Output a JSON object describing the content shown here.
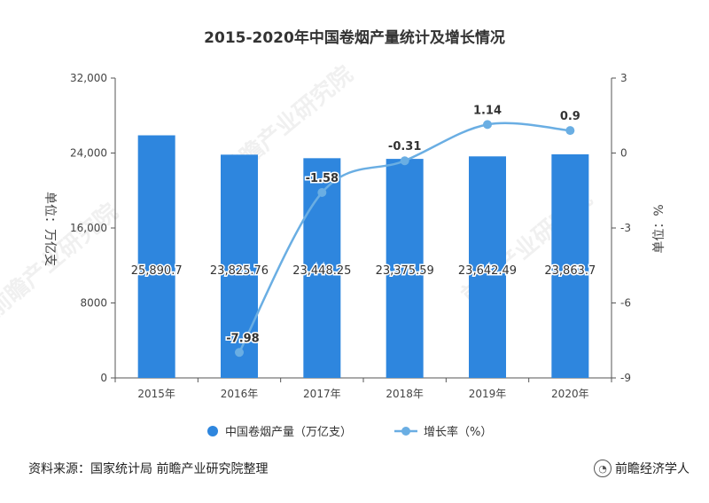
{
  "chart_data": {
    "type": "bar+line",
    "title": "2015-2020年中国卷烟产量统计及增长情况",
    "categories": [
      "2015年",
      "2016年",
      "2017年",
      "2018年",
      "2019年",
      "2020年"
    ],
    "series": [
      {
        "name": "中国卷烟产量（万亿支）",
        "type": "bar",
        "axis": "left",
        "values": [
          25890.7,
          23825.76,
          23448.25,
          23375.59,
          23642.49,
          23863.7
        ],
        "labels": [
          "25,890.7",
          "23,825.76",
          "23,448.25",
          "23,375.59",
          "23,642.49",
          "23,863.7"
        ]
      },
      {
        "name": "增长率（%）",
        "type": "line",
        "axis": "right",
        "values": [
          null,
          -7.98,
          -1.58,
          -0.31,
          1.14,
          0.9
        ],
        "labels": [
          "",
          "-7.98",
          "-1.58",
          "-0.31",
          "1.14",
          "0.9"
        ]
      }
    ],
    "y_left": {
      "label": "单位：万亿支",
      "range": [
        0,
        32000
      ],
      "ticks": [
        0,
        8000,
        16000,
        24000,
        32000
      ],
      "tick_labels": [
        "0",
        "8000",
        "16,000",
        "24,000",
        "32,000"
      ]
    },
    "y_right": {
      "label": "单位：%",
      "range": [
        -9,
        3
      ],
      "ticks": [
        -9,
        -6,
        -3,
        0,
        3
      ],
      "tick_labels": [
        "-9",
        "-6",
        "-3",
        "0",
        "3"
      ]
    },
    "legend": [
      "中国卷烟产量（万亿支）",
      "增长率（%）"
    ],
    "colors": {
      "bar": "#2e86de",
      "line": "#6aaee3",
      "text": "#333333",
      "axis": "#555555"
    }
  },
  "watermark": "前瞻产业研究院",
  "footer": {
    "source": "资料来源：国家统计局 前瞻产业研究院整理",
    "brand": "前瞻经济学人"
  }
}
